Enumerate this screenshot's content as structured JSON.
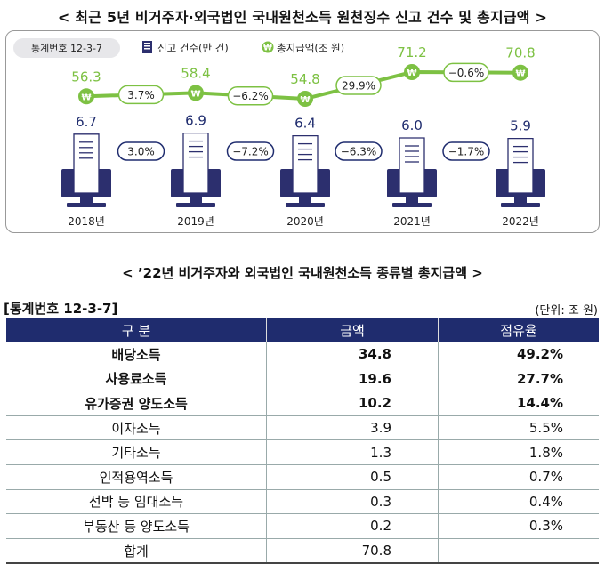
{
  "header": {
    "title": "< 최근 5년 비거주자·외국법인 국내원천소득 원천징수 신고 건수 및 총지급액 >",
    "stat_no": "통계번호 12-3-7",
    "legend_filings": "신고 건수(만 건)",
    "legend_amount": "총지급액(조 원)"
  },
  "chart_data": {
    "type": "bar",
    "categories": [
      "2018년",
      "2019년",
      "2020년",
      "2021년",
      "2022년"
    ],
    "series": [
      {
        "name": "신고 건수(만 건)",
        "values": [
          6.7,
          6.9,
          6.4,
          6.0,
          5.9
        ],
        "change_labels": [
          "3.0%",
          "−7.2%",
          "−6.3%",
          "−1.7%"
        ]
      },
      {
        "name": "총지급액(조 원)",
        "values": [
          56.3,
          58.4,
          54.8,
          71.2,
          70.8
        ],
        "change_labels": [
          "3.7%",
          "−6.2%",
          "29.9%",
          "−0.6%"
        ]
      }
    ],
    "colors": {
      "line": "#7dc143",
      "border": "#1f2c6e",
      "monitor": "#2c2f6e"
    }
  },
  "table": {
    "title": "< ’22년 비거주자와 외국법인 국내원천소득 종류별 총지급액 >",
    "stat_no": "[통계번호 12-3-7]",
    "unit": "(단위: 조 원)",
    "headers": [
      "구 분",
      "금액",
      "점유율"
    ],
    "rows": [
      {
        "category": "배당소득",
        "amount": "34.8",
        "share": "49.2%",
        "bold": true
      },
      {
        "category": "사용료소득",
        "amount": "19.6",
        "share": "27.7%",
        "bold": true
      },
      {
        "category": "유가증권 양도소득",
        "amount": "10.2",
        "share": "14.4%",
        "bold": true
      },
      {
        "category": "이자소득",
        "amount": "3.9",
        "share": "5.5%",
        "bold": false
      },
      {
        "category": "기타소득",
        "amount": "1.3",
        "share": "1.8%",
        "bold": false
      },
      {
        "category": "인적용역소득",
        "amount": "0.5",
        "share": "0.7%",
        "bold": false
      },
      {
        "category": "선박 등 임대소득",
        "amount": "0.3",
        "share": "0.4%",
        "bold": false
      },
      {
        "category": "부동산 등 양도소득",
        "amount": "0.2",
        "share": "0.3%",
        "bold": false
      },
      {
        "category": "합계",
        "amount": "70.8",
        "share": "",
        "bold": false
      }
    ]
  }
}
